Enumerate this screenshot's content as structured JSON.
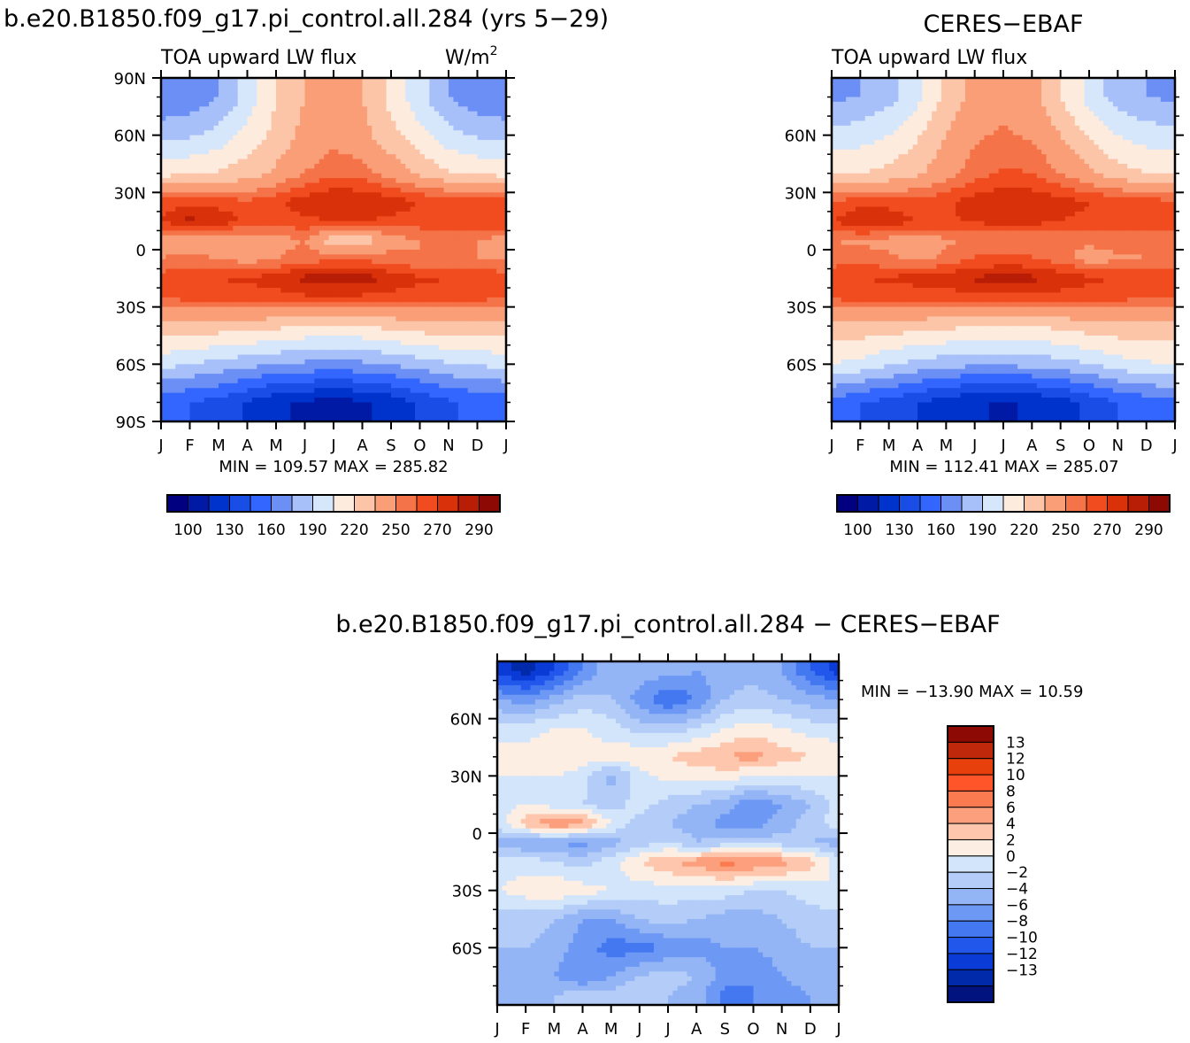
{
  "panels": {
    "model": {
      "title": "b.e20.B1850.f09_g17.pi_control.all.284 (yrs 5−29)",
      "subtitle_left": "TOA upward LW flux",
      "units": "W/m",
      "units_exp": "2",
      "minmax": "MIN = 109.57  MAX = 285.82"
    },
    "obs": {
      "title": "CERES−EBAF",
      "subtitle_left": "TOA upward LW flux",
      "minmax": "MIN = 112.41  MAX = 285.07"
    },
    "diff": {
      "title": "b.e20.B1850.f09_g17.pi_control.all.284  −  CERES−EBAF",
      "minmax": "MIN = −13.90  MAX =   10.59"
    }
  },
  "colorbars": {
    "main": {
      "colors": [
        "#000080",
        "#001aa6",
        "#0033cc",
        "#1a4de6",
        "#3366ff",
        "#6b8ff5",
        "#a8c0fa",
        "#d6e6fb",
        "#fdebde",
        "#fcc5a8",
        "#fa9e78",
        "#f57348",
        "#f04c1f",
        "#d9320b",
        "#b81d06",
        "#8c0a03"
      ],
      "labels": [
        "100",
        "130",
        "160",
        "190",
        "220",
        "250",
        "270",
        "290"
      ]
    },
    "diff": {
      "colors": [
        "#8c0a03",
        "#c0280b",
        "#e8400d",
        "#ff5528",
        "#fb7a50",
        "#fc9f7c",
        "#fdc6ad",
        "#fdeee4",
        "#d3e5fa",
        "#b4cdf8",
        "#94b5f5",
        "#6d99f5",
        "#4478f1",
        "#2257ec",
        "#0a3bd6",
        "#002aaa",
        "#00137f"
      ],
      "labels": [
        "13",
        "12",
        "10",
        "8",
        "6",
        "4",
        "2",
        "0",
        "−2",
        "−4",
        "−6",
        "−8",
        "−10",
        "−12",
        "−13"
      ]
    }
  },
  "chart_data": [
    {
      "type": "heatmap",
      "title": "b.e20.B1850.f09_g17.pi_control.all.284 (yrs 5−29)",
      "subtitle": "TOA upward LW flux",
      "units": "W/m2",
      "x_ticks": [
        "J",
        "F",
        "M",
        "A",
        "M",
        "J",
        "J",
        "A",
        "S",
        "O",
        "N",
        "D",
        "J"
      ],
      "y_ticks": [
        "90N",
        "60N",
        "30N",
        "0",
        "30S",
        "60S",
        "90S"
      ],
      "ylim": [
        -90,
        90
      ],
      "min": 109.57,
      "max": 285.82,
      "contour_levels": [
        100,
        115,
        130,
        145,
        160,
        175,
        190,
        205,
        220,
        235,
        250,
        260,
        270,
        280,
        290
      ],
      "lat": [
        80,
        60,
        40,
        25,
        15,
        5,
        -5,
        -15,
        -25,
        -40,
        -60,
        -80
      ],
      "months": [
        "J",
        "F",
        "M",
        "A",
        "M",
        "J",
        "J",
        "A",
        "S",
        "O",
        "N",
        "D",
        "J"
      ],
      "values": [
        [
          160,
          165,
          175,
          195,
          220,
          235,
          240,
          235,
          215,
          195,
          175,
          165,
          160
        ],
        [
          185,
          188,
          195,
          210,
          225,
          240,
          245,
          240,
          225,
          210,
          195,
          188,
          185
        ],
        [
          215,
          218,
          222,
          228,
          238,
          250,
          258,
          255,
          245,
          232,
          222,
          218,
          215
        ],
        [
          265,
          268,
          265,
          262,
          268,
          276,
          280,
          280,
          275,
          270,
          268,
          266,
          265
        ],
        [
          270,
          283,
          278,
          268,
          265,
          268,
          270,
          270,
          268,
          266,
          268,
          270,
          270
        ],
        [
          245,
          240,
          238,
          240,
          245,
          250,
          225,
          225,
          245,
          250,
          255,
          250,
          245
        ],
        [
          250,
          255,
          250,
          245,
          250,
          255,
          258,
          258,
          255,
          250,
          252,
          250,
          250
        ],
        [
          265,
          268,
          270,
          272,
          275,
          284,
          286,
          285,
          278,
          272,
          270,
          268,
          265
        ],
        [
          262,
          263,
          264,
          265,
          266,
          268,
          268,
          268,
          266,
          265,
          264,
          263,
          262
        ],
        [
          230,
          230,
          228,
          226,
          224,
          220,
          218,
          220,
          224,
          228,
          230,
          230,
          230
        ],
        [
          195,
          190,
          185,
          180,
          175,
          172,
          170,
          172,
          176,
          182,
          188,
          192,
          195
        ],
        [
          150,
          145,
          140,
          128,
          118,
          112,
          110,
          112,
          120,
          132,
          143,
          148,
          150
        ]
      ]
    },
    {
      "type": "heatmap",
      "title": "CERES−EBAF",
      "subtitle": "TOA upward LW flux",
      "x_ticks": [
        "J",
        "F",
        "M",
        "A",
        "M",
        "J",
        "J",
        "A",
        "S",
        "O",
        "N",
        "D",
        "J"
      ],
      "y_ticks": [
        "60N",
        "30N",
        "0",
        "30S",
        "60S"
      ],
      "ylim": [
        -90,
        90
      ],
      "min": 112.41,
      "max": 285.07,
      "contour_levels": [
        100,
        115,
        130,
        145,
        160,
        175,
        190,
        205,
        220,
        235,
        250,
        260,
        270,
        280,
        290
      ],
      "lat": [
        80,
        60,
        40,
        25,
        15,
        5,
        -5,
        -15,
        -25,
        -40,
        -60,
        -80
      ],
      "months": [
        "J",
        "F",
        "M",
        "A",
        "M",
        "J",
        "J",
        "A",
        "S",
        "O",
        "N",
        "D",
        "J"
      ],
      "values": [
        [
          172,
          175,
          185,
          200,
          225,
          240,
          245,
          240,
          220,
          200,
          182,
          175,
          172
        ],
        [
          195,
          198,
          205,
          218,
          235,
          248,
          252,
          248,
          235,
          218,
          205,
          198,
          195
        ],
        [
          218,
          220,
          225,
          232,
          245,
          255,
          262,
          260,
          250,
          238,
          226,
          220,
          218
        ],
        [
          262,
          265,
          265,
          264,
          268,
          275,
          278,
          278,
          274,
          270,
          268,
          265,
          262
        ],
        [
          268,
          282,
          278,
          270,
          268,
          272,
          274,
          274,
          270,
          268,
          268,
          268,
          268
        ],
        [
          250,
          248,
          246,
          245,
          248,
          252,
          250,
          250,
          250,
          252,
          255,
          252,
          250
        ],
        [
          255,
          256,
          252,
          248,
          252,
          262,
          262,
          262,
          255,
          245,
          248,
          250,
          255
        ],
        [
          268,
          270,
          272,
          274,
          276,
          282,
          284,
          283,
          278,
          272,
          270,
          268,
          268
        ],
        [
          262,
          264,
          264,
          264,
          265,
          265,
          266,
          266,
          265,
          264,
          263,
          262,
          262
        ],
        [
          230,
          230,
          228,
          226,
          224,
          220,
          218,
          220,
          224,
          228,
          230,
          230,
          230
        ],
        [
          205,
          200,
          192,
          185,
          180,
          178,
          178,
          180,
          184,
          190,
          198,
          203,
          205
        ],
        [
          155,
          145,
          140,
          130,
          122,
          116,
          114,
          116,
          122,
          135,
          145,
          152,
          155
        ]
      ]
    },
    {
      "type": "heatmap",
      "title": "b.e20.B1850.f09_g17.pi_control.all.284  −  CERES−EBAF",
      "x_ticks": [
        "J",
        "F",
        "M",
        "A",
        "M",
        "J",
        "J",
        "A",
        "S",
        "O",
        "N",
        "D",
        "J"
      ],
      "y_ticks": [
        "60N",
        "30N",
        "0",
        "30S",
        "60S"
      ],
      "ylim": [
        -90,
        90
      ],
      "min": -13.9,
      "max": 10.59,
      "contour_levels": [
        -13,
        -12,
        -10,
        -8,
        -6,
        -4,
        -2,
        0,
        2,
        4,
        6,
        8,
        10,
        12,
        13
      ],
      "lat": [
        85,
        70,
        55,
        40,
        30,
        15,
        5,
        -5,
        -15,
        -30,
        -45,
        -60,
        -75,
        -85
      ],
      "months": [
        "J",
        "F",
        "M",
        "A",
        "M",
        "J",
        "J",
        "A",
        "S",
        "O",
        "N",
        "D",
        "J"
      ],
      "values": [
        [
          -11,
          -13,
          -10,
          -6,
          -2,
          -3,
          -3,
          -4,
          -3,
          -3,
          -4,
          -8,
          -11
        ],
        [
          -4,
          -5,
          -3,
          -1,
          -2,
          -5,
          -8,
          -6,
          -2,
          -1,
          -2,
          -3,
          -4
        ],
        [
          1,
          1,
          2,
          2,
          1,
          -1,
          -1,
          0,
          2,
          3,
          2,
          1,
          1
        ],
        [
          3,
          3,
          4,
          3,
          3,
          4,
          4,
          5,
          6,
          7,
          5,
          4,
          3
        ],
        [
          2,
          2,
          2,
          1,
          -3,
          1,
          3,
          3,
          3,
          2,
          2,
          2,
          2
        ],
        [
          1,
          2,
          1,
          0,
          -1,
          1,
          -1,
          -2,
          -3,
          -6,
          -4,
          -2,
          1
        ],
        [
          1,
          5,
          8,
          7,
          2,
          -1,
          -2,
          -3,
          -5,
          -5,
          -3,
          -1,
          1
        ],
        [
          -3,
          -4,
          -4,
          -5,
          -3,
          -1,
          0,
          -2,
          -1,
          -1,
          -1,
          -2,
          -3
        ],
        [
          1,
          1,
          0,
          -1,
          1,
          4,
          6,
          7,
          9,
          8,
          7,
          5,
          1
        ],
        [
          2,
          3,
          4,
          3,
          2,
          1,
          1,
          1,
          1,
          0,
          0,
          1,
          2
        ],
        [
          -1,
          -1,
          -2,
          -4,
          -4,
          -2,
          -1,
          -2,
          -3,
          -3,
          -2,
          -1,
          -1
        ],
        [
          -2,
          -2,
          -3,
          -5,
          -7,
          -7,
          -6,
          -5,
          -4,
          -4,
          -3,
          -2,
          -2
        ],
        [
          -3,
          -3,
          -4,
          -6,
          -4,
          -2,
          -1,
          -2,
          -5,
          -6,
          -4,
          -3,
          -3
        ],
        [
          -4,
          -4,
          -2,
          -1,
          -1,
          0,
          -2,
          -3,
          -7,
          -6,
          -5,
          -4,
          -4
        ]
      ]
    }
  ]
}
